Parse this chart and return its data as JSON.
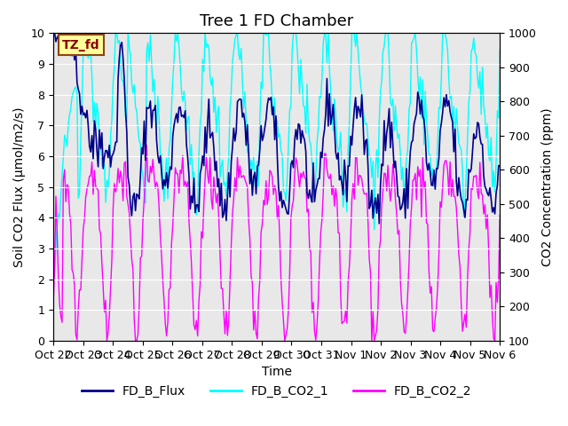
{
  "title": "Tree 1 FD Chamber",
  "xlabel": "Time",
  "ylabel_left": "Soil CO2 Flux (μmol/m2/s)",
  "ylabel_right": "CO2 Concentration (ppm)",
  "ylim_left": [
    0.0,
    10.0
  ],
  "ylim_right": [
    100,
    1000
  ],
  "yticks_left": [
    0.0,
    1.0,
    2.0,
    3.0,
    4.0,
    5.0,
    6.0,
    7.0,
    8.0,
    9.0,
    10.0
  ],
  "yticks_right": [
    100,
    200,
    300,
    400,
    500,
    600,
    700,
    800,
    900,
    1000
  ],
  "x_labels": [
    "Oct 22",
    "Oct 23",
    "Oct 24",
    "Oct 25",
    "Oct 26",
    "Oct 27",
    "Oct 28",
    "Oct 29",
    "Oct 30",
    "Oct 31",
    "Nov 1",
    "Nov 2",
    "Nov 3",
    "Nov 4",
    "Nov 5",
    "Nov 6"
  ],
  "n_days": 15,
  "color_flux": "#00008B",
  "color_co2_1": "#00FFFF",
  "color_co2_2": "#FF00FF",
  "legend_labels": [
    "FD_B_Flux",
    "FD_B_CO2_1",
    "FD_B_CO2_2"
  ],
  "annotation_text": "TZ_fd",
  "annotation_bg": "#FFFF99",
  "annotation_border": "#8B4513",
  "annotation_text_color": "#8B0000",
  "background_color": "#E8E8E8",
  "grid_color": "#FFFFFF",
  "title_fontsize": 13,
  "label_fontsize": 10,
  "tick_fontsize": 9,
  "legend_fontsize": 10,
  "linewidth_flux": 1.2,
  "linewidth_co2": 1.0,
  "seed": 42,
  "n_points": 360
}
